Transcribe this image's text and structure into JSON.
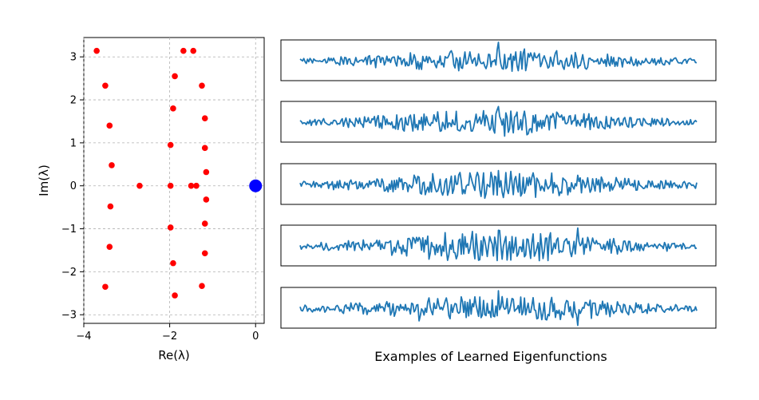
{
  "chart_data": [
    {
      "type": "scatter",
      "xlabel": "Re(λ)",
      "ylabel": "Im(λ)",
      "xlim": [
        -4.0,
        0.2
      ],
      "ylim": [
        -3.2,
        3.45
      ],
      "xticks": [
        -4,
        -2,
        0
      ],
      "xtick_labels": [
        "−4",
        "−2",
        "0"
      ],
      "yticks": [
        3,
        2,
        1,
        0,
        -1,
        -2,
        -3
      ],
      "ytick_labels": [
        "3",
        "2",
        "1",
        "0",
        "−1",
        "−2",
        "−3"
      ],
      "grid": true,
      "colors": {
        "eigenvalue": "#ff0000",
        "highlight": "#0000ff"
      },
      "series": [
        {
          "points": [
            [
              -3.7,
              3.14
            ],
            [
              -1.68,
              3.14
            ],
            [
              -1.45,
              3.14
            ],
            [
              -3.5,
              2.33
            ],
            [
              -1.88,
              2.55
            ],
            [
              -1.25,
              2.33
            ],
            [
              -1.92,
              1.8
            ],
            [
              -1.18,
              1.57
            ],
            [
              -3.4,
              1.4
            ],
            [
              -1.98,
              0.95
            ],
            [
              -1.18,
              0.88
            ],
            [
              -3.35,
              0.48
            ],
            [
              -1.15,
              0.32
            ],
            [
              -2.7,
              0.0
            ],
            [
              -1.98,
              0.0
            ],
            [
              -1.5,
              0.0
            ],
            [
              -1.38,
              0.0
            ],
            [
              -1.15,
              -0.32
            ],
            [
              -3.38,
              -0.48
            ],
            [
              -1.18,
              -0.88
            ],
            [
              -1.98,
              -0.97
            ],
            [
              -3.4,
              -1.42
            ],
            [
              -1.18,
              -1.57
            ],
            [
              -1.92,
              -1.8
            ],
            [
              -3.5,
              -2.35
            ],
            [
              -1.25,
              -2.33
            ],
            [
              -1.88,
              -2.55
            ]
          ]
        },
        {
          "points": [
            [
              0.0,
              0.0
            ]
          ]
        }
      ]
    },
    {
      "type": "line",
      "title": "Examples of Learned Eigenfunctions",
      "panel_count": 5,
      "line_color": "#1f77b4",
      "series": [
        {
          "seed": 11,
          "center_spike": 1.2,
          "envelope": 0.45
        },
        {
          "seed": 23,
          "center_spike": 0.9,
          "envelope": 0.5
        },
        {
          "seed": 37,
          "center_spike": 0.8,
          "envelope": 0.55
        },
        {
          "seed": 51,
          "center_spike": 0.9,
          "envelope": 0.6
        },
        {
          "seed": 73,
          "center_spike": 1.0,
          "envelope": 0.55
        }
      ]
    }
  ]
}
